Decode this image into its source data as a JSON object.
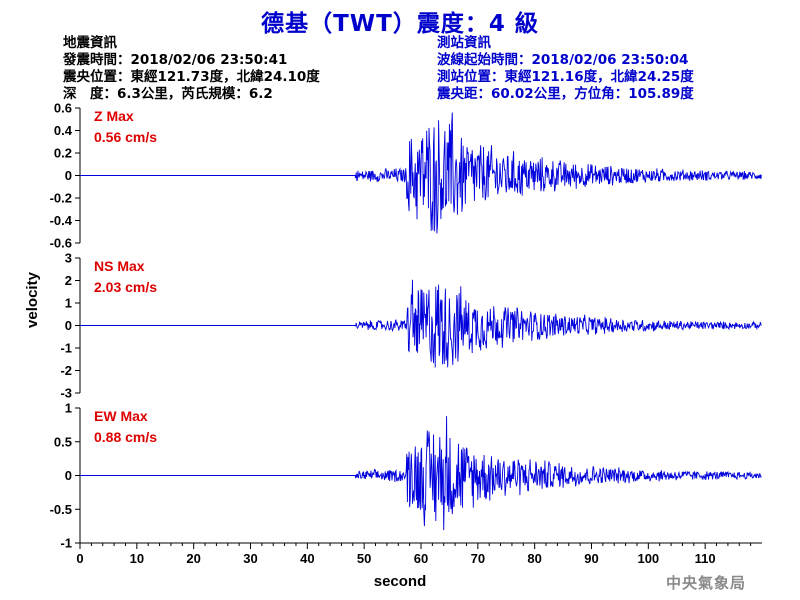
{
  "title": "德基（TWT）震度：4 級",
  "event_info": {
    "heading": "地震資訊",
    "origin_time": "發震時間：2018/02/06 23:50:41",
    "epicenter": "震央位置：東經121.73度，北緯24.10度",
    "depth_magnitude": "深　度：6.3公里，芮氏規模：6.2"
  },
  "station_info": {
    "heading": "測站資訊",
    "wave_start": "波線起始時間：2018/02/06 23:50:04",
    "station_location": "測站位置：東經121.16度，北緯24.25度",
    "distance_azimuth": "震央距：60.02公里，方位角：105.89度"
  },
  "footer": "中央氣象局",
  "colors": {
    "trace": "#0000dd",
    "label": "#dd0000",
    "title": "#0000cc",
    "axis": "#000000"
  },
  "chart_data": {
    "type": "line",
    "xlabel": "second",
    "ylabel": "velocity",
    "xlim": [
      0,
      120
    ],
    "x_ticks": [
      "0",
      "10",
      "20",
      "30",
      "40",
      "50",
      "60",
      "70",
      "80",
      "90",
      "100",
      "110"
    ],
    "series": [
      {
        "name": "Z",
        "max_label": "Z Max",
        "max_value": "0.56 cm/s",
        "ylim": [
          -0.6,
          0.6
        ],
        "y_ticks": [
          "0.6",
          "0.4",
          "0.2",
          "0",
          "-0.2",
          "-0.4",
          "-0.6"
        ],
        "peak": 0.56,
        "p_arrival_s": 48.5,
        "s_arrival_s": 57.5,
        "peak_time_s": 65.5
      },
      {
        "name": "NS",
        "max_label": "NS Max",
        "max_value": "2.03 cm/s",
        "ylim": [
          -3,
          3
        ],
        "y_ticks": [
          "3",
          "2",
          "1",
          "0",
          "-1",
          "-2",
          "-3"
        ],
        "peak": 2.03,
        "p_arrival_s": 48.5,
        "s_arrival_s": 57.5,
        "peak_time_s": 58.5
      },
      {
        "name": "EW",
        "max_label": "EW Max",
        "max_value": "0.88 cm/s",
        "ylim": [
          -1,
          1
        ],
        "y_ticks": [
          "1",
          "0.5",
          "0",
          "-0.5",
          "-1"
        ],
        "peak": 0.88,
        "p_arrival_s": 48.5,
        "s_arrival_s": 57.5,
        "peak_time_s": 64.5
      }
    ]
  }
}
